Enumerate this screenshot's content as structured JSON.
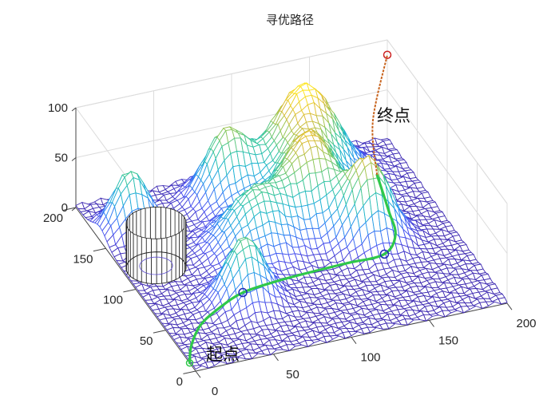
{
  "chart_data": {
    "type": "surface3d",
    "title": "寻优路径",
    "xlabel": "",
    "ylabel": "",
    "zlabel": "",
    "xlim": [
      0,
      200
    ],
    "ylim": [
      0,
      200
    ],
    "zlim": [
      0,
      100
    ],
    "x_ticks": [
      "0",
      "50",
      "100",
      "150",
      "200"
    ],
    "y_ticks": [
      "0",
      "50",
      "100",
      "150",
      "200"
    ],
    "z_ticks": [
      "0",
      "50",
      "100"
    ],
    "grid": true,
    "colormap": [
      "#3e26a8",
      "#4a50f0",
      "#2c89f4",
      "#1cb3d3",
      "#33c69b",
      "#91c85a",
      "#dcbc3a",
      "#fde51f"
    ],
    "peaks": [
      {
        "x": 20,
        "y": 160,
        "height": 60,
        "sigma": 11
      },
      {
        "x": 135,
        "y": 168,
        "height": 100,
        "sigma": 20
      },
      {
        "x": 85,
        "y": 170,
        "height": 68,
        "sigma": 13
      },
      {
        "x": 82,
        "y": 112,
        "height": 58,
        "sigma": 18
      },
      {
        "x": 122,
        "y": 125,
        "height": 75,
        "sigma": 16
      },
      {
        "x": 55,
        "y": 60,
        "height": 63,
        "sigma": 12
      },
      {
        "x": 148,
        "y": 95,
        "height": 80,
        "sigma": 13
      }
    ],
    "obstacle": {
      "type": "cylinder",
      "center": [
        20,
        118
      ],
      "radius": 18,
      "height": 45
    },
    "path": {
      "start": [
        0,
        10,
        0
      ],
      "end": [
        200,
        200,
        85
      ],
      "waypoints": [
        [
          58,
          72,
          0
        ],
        [
          152,
          80,
          0
        ]
      ],
      "x": [
        0,
        8,
        22,
        40,
        58,
        80,
        105,
        128,
        152,
        166,
        172,
        178,
        183,
        200
      ],
      "y": [
        10,
        28,
        48,
        62,
        72,
        76,
        78,
        79,
        80,
        98,
        125,
        160,
        180,
        200
      ],
      "z": [
        0,
        0,
        0,
        0,
        0,
        0,
        0,
        0,
        0,
        0,
        0,
        5,
        40,
        85
      ]
    },
    "annotations": {
      "start": "起点",
      "end": "终点"
    }
  },
  "colors": {
    "path": "#2fc84a",
    "approach": "#c8641e",
    "marker": "#1f2ab8",
    "end_marker": "#cc2222"
  }
}
